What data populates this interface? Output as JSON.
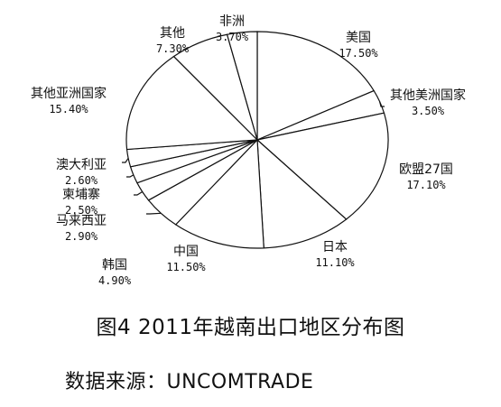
{
  "chart_data": {
    "type": "pie",
    "slices": [
      {
        "name": "美国",
        "value": 17.5,
        "label": "17.50%"
      },
      {
        "name": "其他美洲国家",
        "value": 3.5,
        "label": "3.50%"
      },
      {
        "name": "欧盟27国",
        "value": 17.1,
        "label": "17.10%"
      },
      {
        "name": "日本",
        "value": 11.1,
        "label": "11.10%"
      },
      {
        "name": "中国",
        "value": 11.5,
        "label": "11.50%"
      },
      {
        "name": "韩国",
        "value": 4.9,
        "label": "4.90%"
      },
      {
        "name": "马来西亚",
        "value": 2.9,
        "label": "2.90%"
      },
      {
        "name": "柬埔寨",
        "value": 2.5,
        "label": "2.50%"
      },
      {
        "name": "澳大利亚",
        "value": 2.6,
        "label": "2.60%"
      },
      {
        "name": "其他亚洲国家",
        "value": 15.4,
        "label": "15.40%"
      },
      {
        "name": "其他",
        "value": 7.3,
        "label": "7.30%"
      },
      {
        "name": "非洲",
        "value": 3.7,
        "label": "3.70%"
      }
    ]
  },
  "caption": "图4 2011年越南出口地区分布图",
  "source": "数据来源：UNCOMTRADE",
  "colors": {
    "stroke": "#111111",
    "background": "#ffffff"
  }
}
